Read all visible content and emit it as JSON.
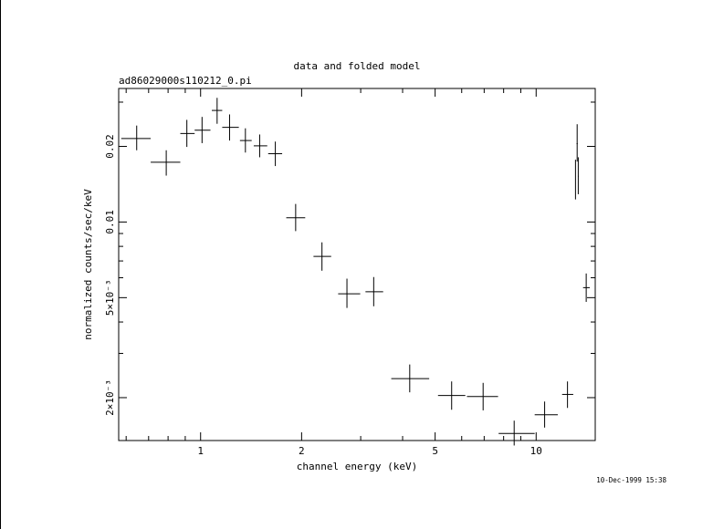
{
  "chart_data": {
    "type": "scatter",
    "title": "data and folded model",
    "subtitle": "ad86029000s110212_0.pi",
    "xlabel": "channel energy (keV)",
    "ylabel": "normalized counts/sec/keV",
    "timestamp": "10-Dec-1999 15:38",
    "x_scale": "log",
    "y_scale": "log",
    "xlim": [
      0.57,
      15.0
    ],
    "ylim": [
      0.00135,
      0.034
    ],
    "x_ticks": [
      {
        "value": 1,
        "label": "1"
      },
      {
        "value": 2,
        "label": "2"
      },
      {
        "value": 5,
        "label": "5"
      },
      {
        "value": 10,
        "label": "10"
      }
    ],
    "y_ticks": [
      {
        "value": 0.002,
        "label": "2×10⁻³"
      },
      {
        "value": 0.005,
        "label": "5×10⁻³"
      },
      {
        "value": 0.01,
        "label": "0.01"
      },
      {
        "value": 0.02,
        "label": "0.02"
      }
    ],
    "points": [
      {
        "x": 0.645,
        "xlo": 0.58,
        "xhi": 0.71,
        "y": 0.0215,
        "ylo": 0.0193,
        "yhi": 0.0242
      },
      {
        "x": 0.79,
        "xlo": 0.71,
        "xhi": 0.87,
        "y": 0.0173,
        "ylo": 0.0153,
        "yhi": 0.0193
      },
      {
        "x": 0.91,
        "xlo": 0.87,
        "xhi": 0.96,
        "y": 0.0225,
        "ylo": 0.0199,
        "yhi": 0.0255
      },
      {
        "x": 1.01,
        "xlo": 0.96,
        "xhi": 1.07,
        "y": 0.0232,
        "ylo": 0.0206,
        "yhi": 0.0262
      },
      {
        "x": 1.12,
        "xlo": 1.08,
        "xhi": 1.16,
        "y": 0.0278,
        "ylo": 0.0246,
        "yhi": 0.0312
      },
      {
        "x": 1.22,
        "xlo": 1.16,
        "xhi": 1.3,
        "y": 0.0238,
        "ylo": 0.0211,
        "yhi": 0.0268
      },
      {
        "x": 1.36,
        "xlo": 1.31,
        "xhi": 1.42,
        "y": 0.0211,
        "ylo": 0.0189,
        "yhi": 0.0236
      },
      {
        "x": 1.5,
        "xlo": 1.44,
        "xhi": 1.58,
        "y": 0.0201,
        "ylo": 0.0181,
        "yhi": 0.0223
      },
      {
        "x": 1.67,
        "xlo": 1.59,
        "xhi": 1.75,
        "y": 0.0187,
        "ylo": 0.0167,
        "yhi": 0.0209
      },
      {
        "x": 1.92,
        "xlo": 1.8,
        "xhi": 2.05,
        "y": 0.0104,
        "ylo": 0.0092,
        "yhi": 0.0118
      },
      {
        "x": 2.3,
        "xlo": 2.17,
        "xhi": 2.45,
        "y": 0.0073,
        "ylo": 0.0064,
        "yhi": 0.0083
      },
      {
        "x": 2.73,
        "xlo": 2.57,
        "xhi": 2.99,
        "y": 0.00518,
        "ylo": 0.00455,
        "yhi": 0.00595
      },
      {
        "x": 3.28,
        "xlo": 3.1,
        "xhi": 3.5,
        "y": 0.00528,
        "ylo": 0.00462,
        "yhi": 0.00604
      },
      {
        "x": 4.2,
        "xlo": 3.7,
        "xhi": 4.8,
        "y": 0.00238,
        "ylo": 0.0021,
        "yhi": 0.00271
      },
      {
        "x": 5.6,
        "xlo": 5.1,
        "xhi": 6.15,
        "y": 0.00204,
        "ylo": 0.00179,
        "yhi": 0.00232
      },
      {
        "x": 6.95,
        "xlo": 6.22,
        "xhi": 7.7,
        "y": 0.00202,
        "ylo": 0.00178,
        "yhi": 0.00229
      },
      {
        "x": 8.6,
        "xlo": 7.73,
        "xhi": 9.9,
        "y": 0.00144,
        "ylo": 0.00129,
        "yhi": 0.00162
      },
      {
        "x": 10.6,
        "xlo": 9.9,
        "xhi": 11.6,
        "y": 0.00171,
        "ylo": 0.00152,
        "yhi": 0.00193
      },
      {
        "x": 12.4,
        "xlo": 11.95,
        "xhi": 12.9,
        "y": 0.00206,
        "ylo": 0.00182,
        "yhi": 0.00232
      },
      {
        "x": 13.25,
        "xlo": 13.2,
        "xhi": 13.3,
        "y": 0.0205,
        "ylo": 0.0174,
        "yhi": 0.0245
      },
      {
        "x": 13.1,
        "xlo": 13.08,
        "xhi": 13.12,
        "y": 0.0148,
        "ylo": 0.0123,
        "yhi": 0.0177
      },
      {
        "x": 13.35,
        "xlo": 13.32,
        "xhi": 13.38,
        "y": 0.0152,
        "ylo": 0.0129,
        "yhi": 0.0181
      },
      {
        "x": 14.1,
        "xlo": 13.8,
        "xhi": 14.45,
        "y": 0.00548,
        "ylo": 0.00481,
        "yhi": 0.00624
      }
    ]
  }
}
